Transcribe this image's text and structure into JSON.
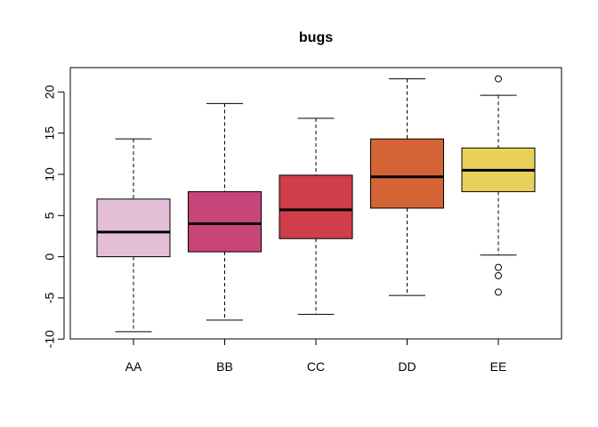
{
  "chart_data": {
    "type": "boxplot",
    "title": "bugs",
    "xlabel": "",
    "ylabel": "",
    "ylim": [
      -10,
      23
    ],
    "yticks": [
      -10,
      -5,
      0,
      5,
      10,
      15,
      20
    ],
    "grid": false,
    "categories": [
      "AA",
      "BB",
      "CC",
      "DD",
      "EE"
    ],
    "colors": [
      "#E2BFD6",
      "#C8457A",
      "#CF3E4A",
      "#D46436",
      "#E8D158"
    ],
    "boxes": [
      {
        "name": "AA",
        "whisker_low": -9.1,
        "q1": 0.0,
        "median": 3.0,
        "q3": 7.0,
        "whisker_high": 14.3,
        "outliers": []
      },
      {
        "name": "BB",
        "whisker_low": -7.7,
        "q1": 0.6,
        "median": 4.0,
        "q3": 7.9,
        "whisker_high": 18.6,
        "outliers": []
      },
      {
        "name": "CC",
        "whisker_low": -7.0,
        "q1": 2.2,
        "median": 5.7,
        "q3": 9.9,
        "whisker_high": 16.8,
        "outliers": []
      },
      {
        "name": "DD",
        "whisker_low": -4.7,
        "q1": 5.9,
        "median": 9.7,
        "q3": 14.3,
        "whisker_high": 21.6,
        "outliers": []
      },
      {
        "name": "EE",
        "whisker_low": 0.2,
        "q1": 7.9,
        "median": 10.5,
        "q3": 13.2,
        "whisker_high": 19.6,
        "outliers": [
          21.6,
          -1.3,
          -2.3,
          -4.3
        ]
      }
    ]
  }
}
